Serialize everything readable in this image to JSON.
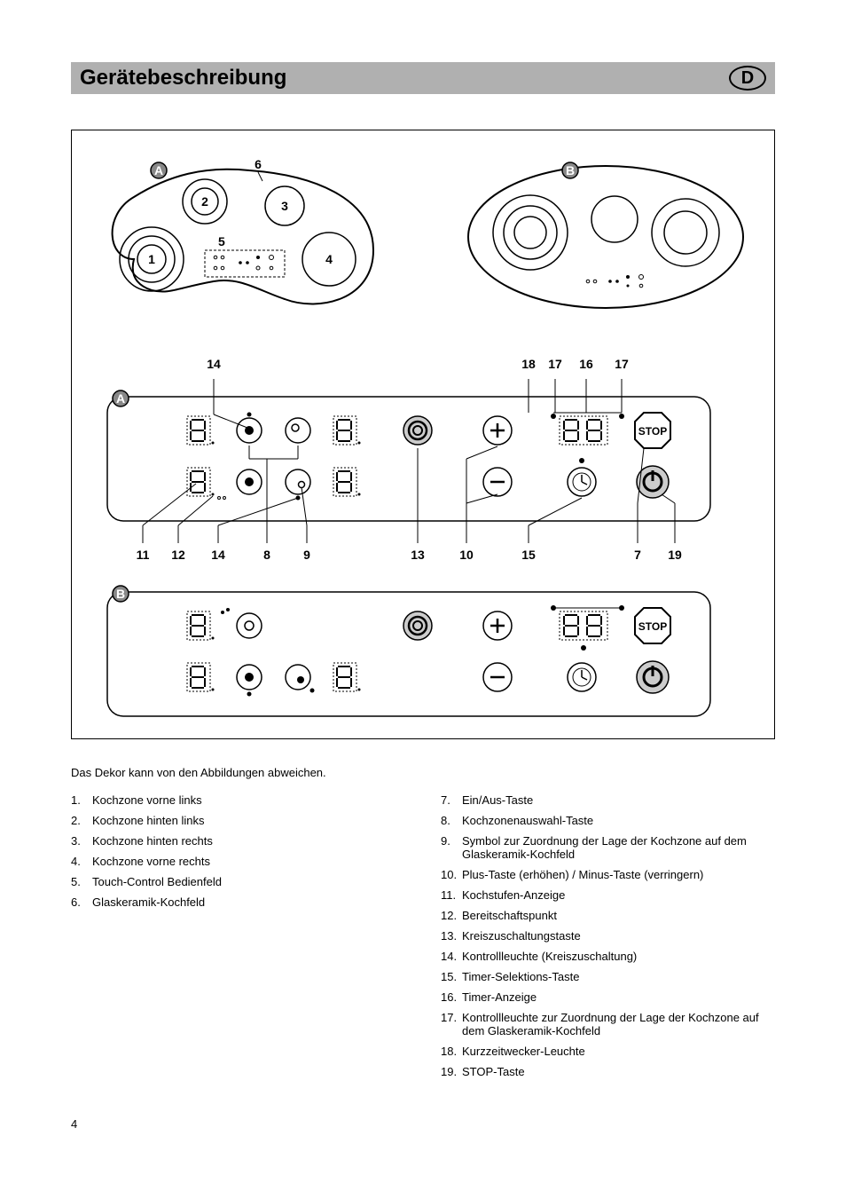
{
  "header": {
    "title": "Gerätebeschreibung",
    "badge": "D"
  },
  "hob_a": {
    "letter": "A",
    "zone1": "1",
    "zone2": "2",
    "zone3": "3",
    "zone4": "4",
    "zone5": "5",
    "zone6": "6"
  },
  "hob_b": {
    "letter": "B"
  },
  "panel_labels_top": {
    "n14": "14",
    "n18": "18",
    "n17a": "17",
    "n16": "16",
    "n17b": "17"
  },
  "panel_labels_bottom": {
    "n11": "11",
    "n12": "12",
    "n14": "14",
    "n8": "8",
    "n9": "9",
    "n13": "13",
    "n10": "10",
    "n15": "15",
    "n7": "7",
    "n19": "19"
  },
  "panel_a_letter": "A",
  "panel_b_letter": "B",
  "stop_label": "STOP",
  "intro_text": "Das Dekor kann von den Abbildungen abweichen.",
  "list_left": [
    {
      "n": "1.",
      "t": "Kochzone vorne links"
    },
    {
      "n": "2.",
      "t": "Kochzone hinten links"
    },
    {
      "n": "3.",
      "t": "Kochzone hinten rechts"
    },
    {
      "n": "4.",
      "t": "Kochzone vorne rechts"
    },
    {
      "n": "5.",
      "t": "Touch-Control Bedienfeld"
    },
    {
      "n": "6.",
      "t": "Glaskeramik-Kochfeld"
    }
  ],
  "list_right": [
    {
      "n": "7.",
      "t": "Ein/Aus-Taste"
    },
    {
      "n": "8.",
      "t": "Kochzonenauswahl-Taste"
    },
    {
      "n": "9.",
      "t": "Symbol zur Zuordnung der Lage der Kochzone auf dem Glaskeramik-Kochfeld"
    },
    {
      "n": "10.",
      "t": "Plus-Taste (erhöhen) / Minus-Taste (verringern)"
    },
    {
      "n": "11.",
      "t": "Kochstufen-Anzeige"
    },
    {
      "n": "12.",
      "t": "Bereitschaftspunkt"
    },
    {
      "n": "13.",
      "t": "Kreiszuschaltungstaste"
    },
    {
      "n": "14.",
      "t": "Kontrollleuchte (Kreiszuschaltung)"
    },
    {
      "n": "15.",
      "t": "Timer-Selektions-Taste"
    },
    {
      "n": "16.",
      "t": "Timer-Anzeige"
    },
    {
      "n": "17.",
      "t": "Kontrollleuchte zur Zuordnung der Lage der Kochzone auf dem Glaskeramik-Kochfeld"
    },
    {
      "n": "18.",
      "t": "Kurzzeitwecker-Leuchte"
    },
    {
      "n": "19.",
      "t": "STOP-Taste"
    }
  ],
  "page_number": "4",
  "colors": {
    "header_bg": "#b0b0b0",
    "outline": "#000000",
    "gray_fill": "#999999",
    "light_gray": "#cccccc"
  }
}
